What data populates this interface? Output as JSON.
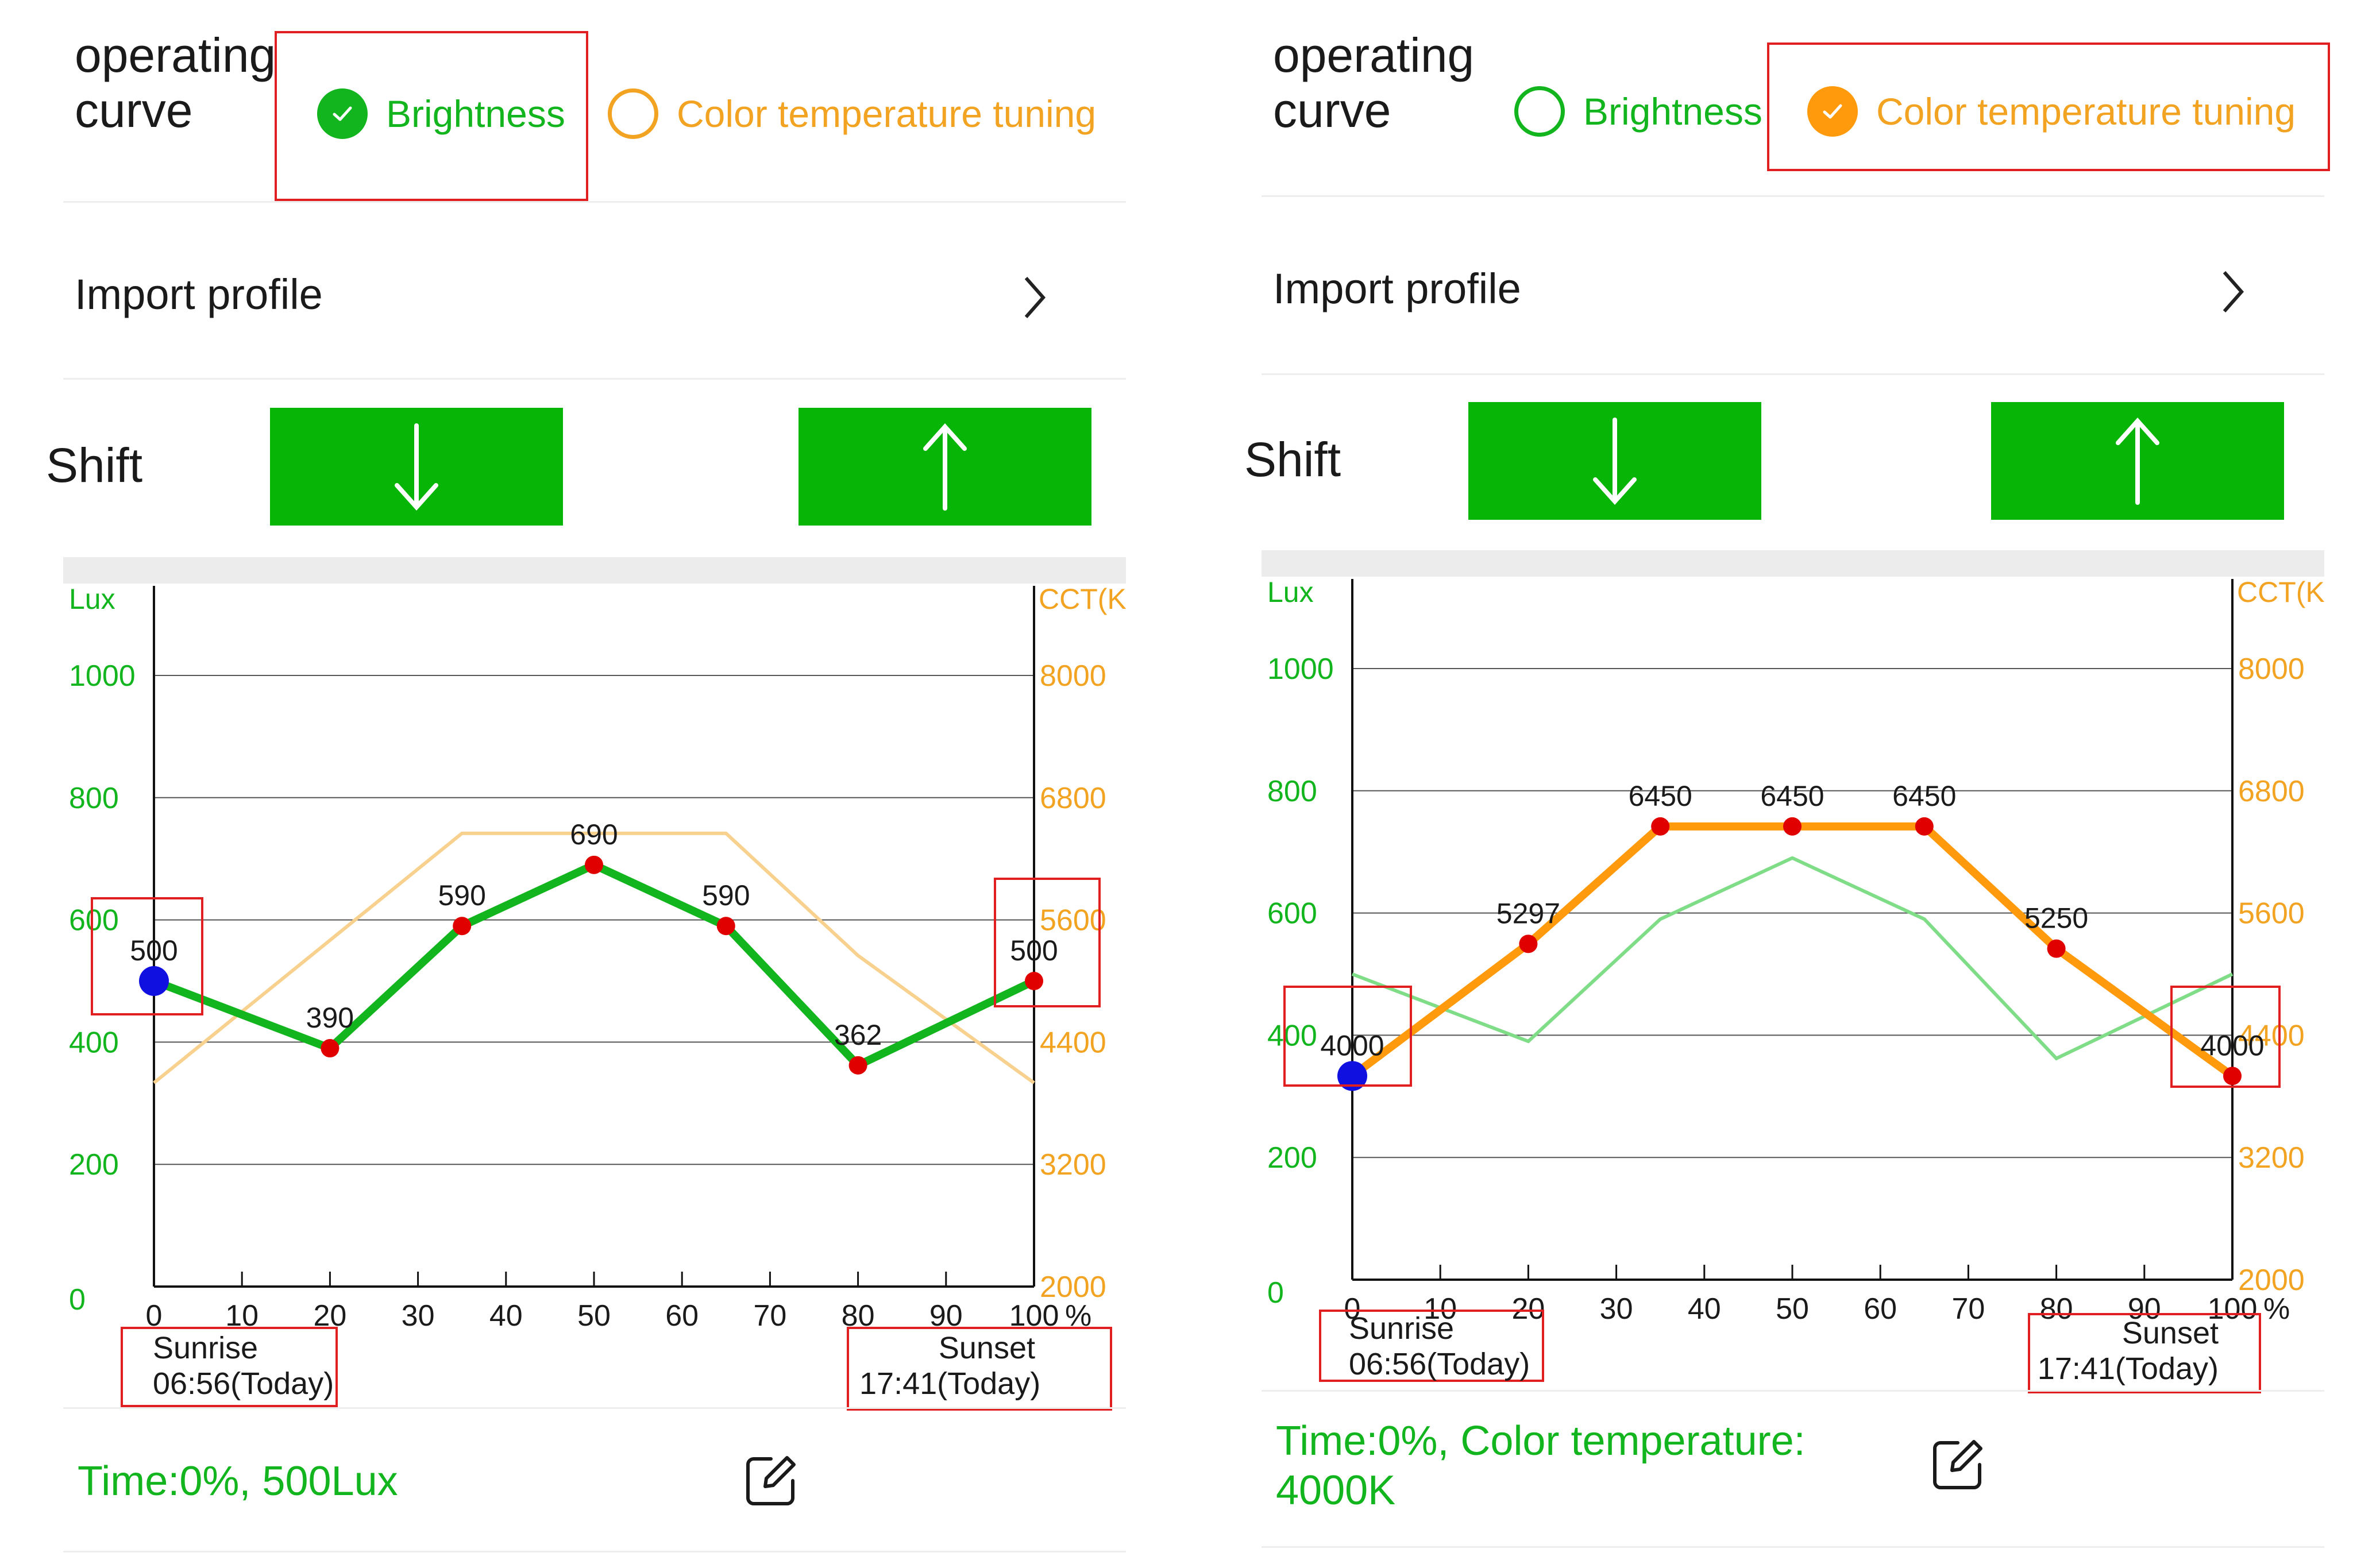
{
  "panels": [
    {
      "operating_curve_label": "operating curve",
      "modes": [
        {
          "label": "Brightness",
          "selected": true
        },
        {
          "label": "Color temperature tuning",
          "selected": false
        }
      ],
      "import_label": "Import profile",
      "shift_label": "Shift",
      "status_text": "Time:0%, 500Lux",
      "sunrise": {
        "label": "Sunrise",
        "time": "06:56(Today)"
      },
      "sunset": {
        "label": "Sunset",
        "time": "17:41(Today)"
      }
    },
    {
      "operating_curve_label": "operating curve",
      "modes": [
        {
          "label": "Brightness",
          "selected": false
        },
        {
          "label": "Color temperature tuning",
          "selected": true
        }
      ],
      "import_label": "Import profile",
      "shift_label": "Shift",
      "status_text": "Time:0%, Color temperature: 4000K",
      "sunrise": {
        "label": "Sunrise",
        "time": "06:56(Today)"
      },
      "sunset": {
        "label": "Sunset",
        "time": "17:41(Today)"
      }
    }
  ],
  "colors": {
    "green": "#12b51e",
    "orange": "#f2a322",
    "button": "#06b506",
    "highlight": "#e02020",
    "point": "#e00000",
    "current_point": "#1010e0"
  },
  "icons": {
    "check": "check-icon",
    "chevron": "chevron-right-icon",
    "down": "arrow-down-icon",
    "up": "arrow-up-icon",
    "edit": "edit-icon"
  },
  "chart_data": [
    {
      "type": "line",
      "x": [
        0,
        20,
        35,
        50,
        65,
        80,
        100
      ],
      "xlabel": "%",
      "xticks": [
        0,
        10,
        20,
        30,
        40,
        50,
        60,
        70,
        80,
        90,
        100
      ],
      "y_left_label": "Lux",
      "y_left_ticks": [
        0,
        200,
        400,
        600,
        800,
        1000
      ],
      "y_left_range": [
        0,
        1000
      ],
      "y_right_label": "CCT(K",
      "y_right_ticks": [
        2000,
        3200,
        4400,
        5600,
        6800,
        8000
      ],
      "y_right_range": [
        2000,
        8000
      ],
      "grid": true,
      "series": [
        {
          "axis": "left",
          "active": true,
          "x": [
            0,
            20,
            35,
            50,
            65,
            80,
            100
          ],
          "values": [
            500,
            390,
            590,
            690,
            590,
            362,
            500
          ],
          "labels": [
            "500",
            "390",
            "590",
            "690",
            "590",
            "362",
            "500"
          ]
        },
        {
          "axis": "right",
          "active": false,
          "x": [
            0,
            35,
            65,
            80,
            100
          ],
          "values": [
            4000,
            6450,
            6450,
            5250,
            4000
          ]
        }
      ]
    },
    {
      "type": "line",
      "x": [
        0,
        20,
        35,
        50,
        65,
        80,
        100
      ],
      "xlabel": "%",
      "xticks": [
        0,
        10,
        20,
        30,
        40,
        50,
        60,
        70,
        80,
        90,
        100
      ],
      "y_left_label": "Lux",
      "y_left_ticks": [
        0,
        200,
        400,
        600,
        800,
        1000
      ],
      "y_left_range": [
        0,
        1000
      ],
      "y_right_label": "CCT(K",
      "y_right_ticks": [
        2000,
        3200,
        4400,
        5600,
        6800,
        8000
      ],
      "y_right_range": [
        2000,
        8000
      ],
      "grid": true,
      "series": [
        {
          "axis": "right",
          "active": true,
          "x": [
            0,
            20,
            35,
            50,
            65,
            80,
            100
          ],
          "values": [
            4000,
            5297,
            6450,
            6450,
            6450,
            5250,
            4000
          ],
          "labels": [
            "4000",
            "5297",
            "6450",
            "6450",
            "6450",
            "5250",
            "4000"
          ]
        },
        {
          "axis": "left",
          "active": false,
          "x": [
            0,
            20,
            35,
            50,
            65,
            80,
            100
          ],
          "values": [
            500,
            390,
            590,
            690,
            590,
            362,
            500
          ]
        }
      ]
    }
  ]
}
